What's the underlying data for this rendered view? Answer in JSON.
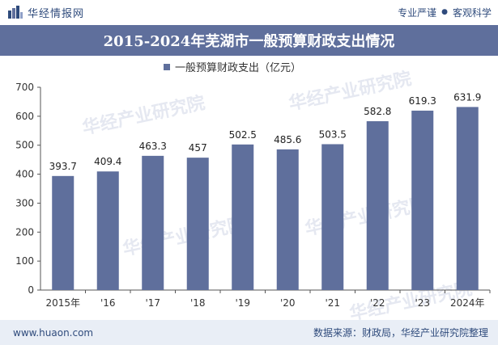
{
  "header": {
    "brand": "华经情报网",
    "tagline_a": "专业严谨",
    "tagline_sep": "●",
    "tagline_b": "客观科学"
  },
  "title": "2015-2024年芜湖市一般预算财政支出情况",
  "footer": {
    "website": "www.huaon.com",
    "source": "数据来源：财政局，华经产业研究院整理"
  },
  "watermark": {
    "text": "华经产业研究院",
    "url": "www.huaon.com"
  },
  "colors": {
    "bar": "#5f6f9c",
    "title_bg": "#5f6f9c",
    "footer_bg": "#e9eef6",
    "brand": "#2f4b7c"
  },
  "chart_data": {
    "type": "bar",
    "title": "",
    "categories": [
      "2015年",
      "'16",
      "'17",
      "'18",
      "'19",
      "'20",
      "'21",
      "'22",
      "'23",
      "2024年"
    ],
    "series": [
      {
        "name": "一般预算财政支出（亿元）",
        "values": [
          393.7,
          409.4,
          463.3,
          457,
          502.5,
          485.6,
          503.5,
          582.8,
          619.3,
          631.9
        ]
      }
    ],
    "data_labels": [
      "393.7",
      "409.4",
      "463.3",
      "457",
      "502.5",
      "485.6",
      "503.5",
      "582.8",
      "619.3",
      "631.9"
    ],
    "ylim": [
      0,
      700
    ],
    "yticks": [
      0,
      100,
      200,
      300,
      400,
      500,
      600,
      700
    ],
    "xlabel": "",
    "ylabel": "",
    "legend": "top-center",
    "grid": false
  }
}
